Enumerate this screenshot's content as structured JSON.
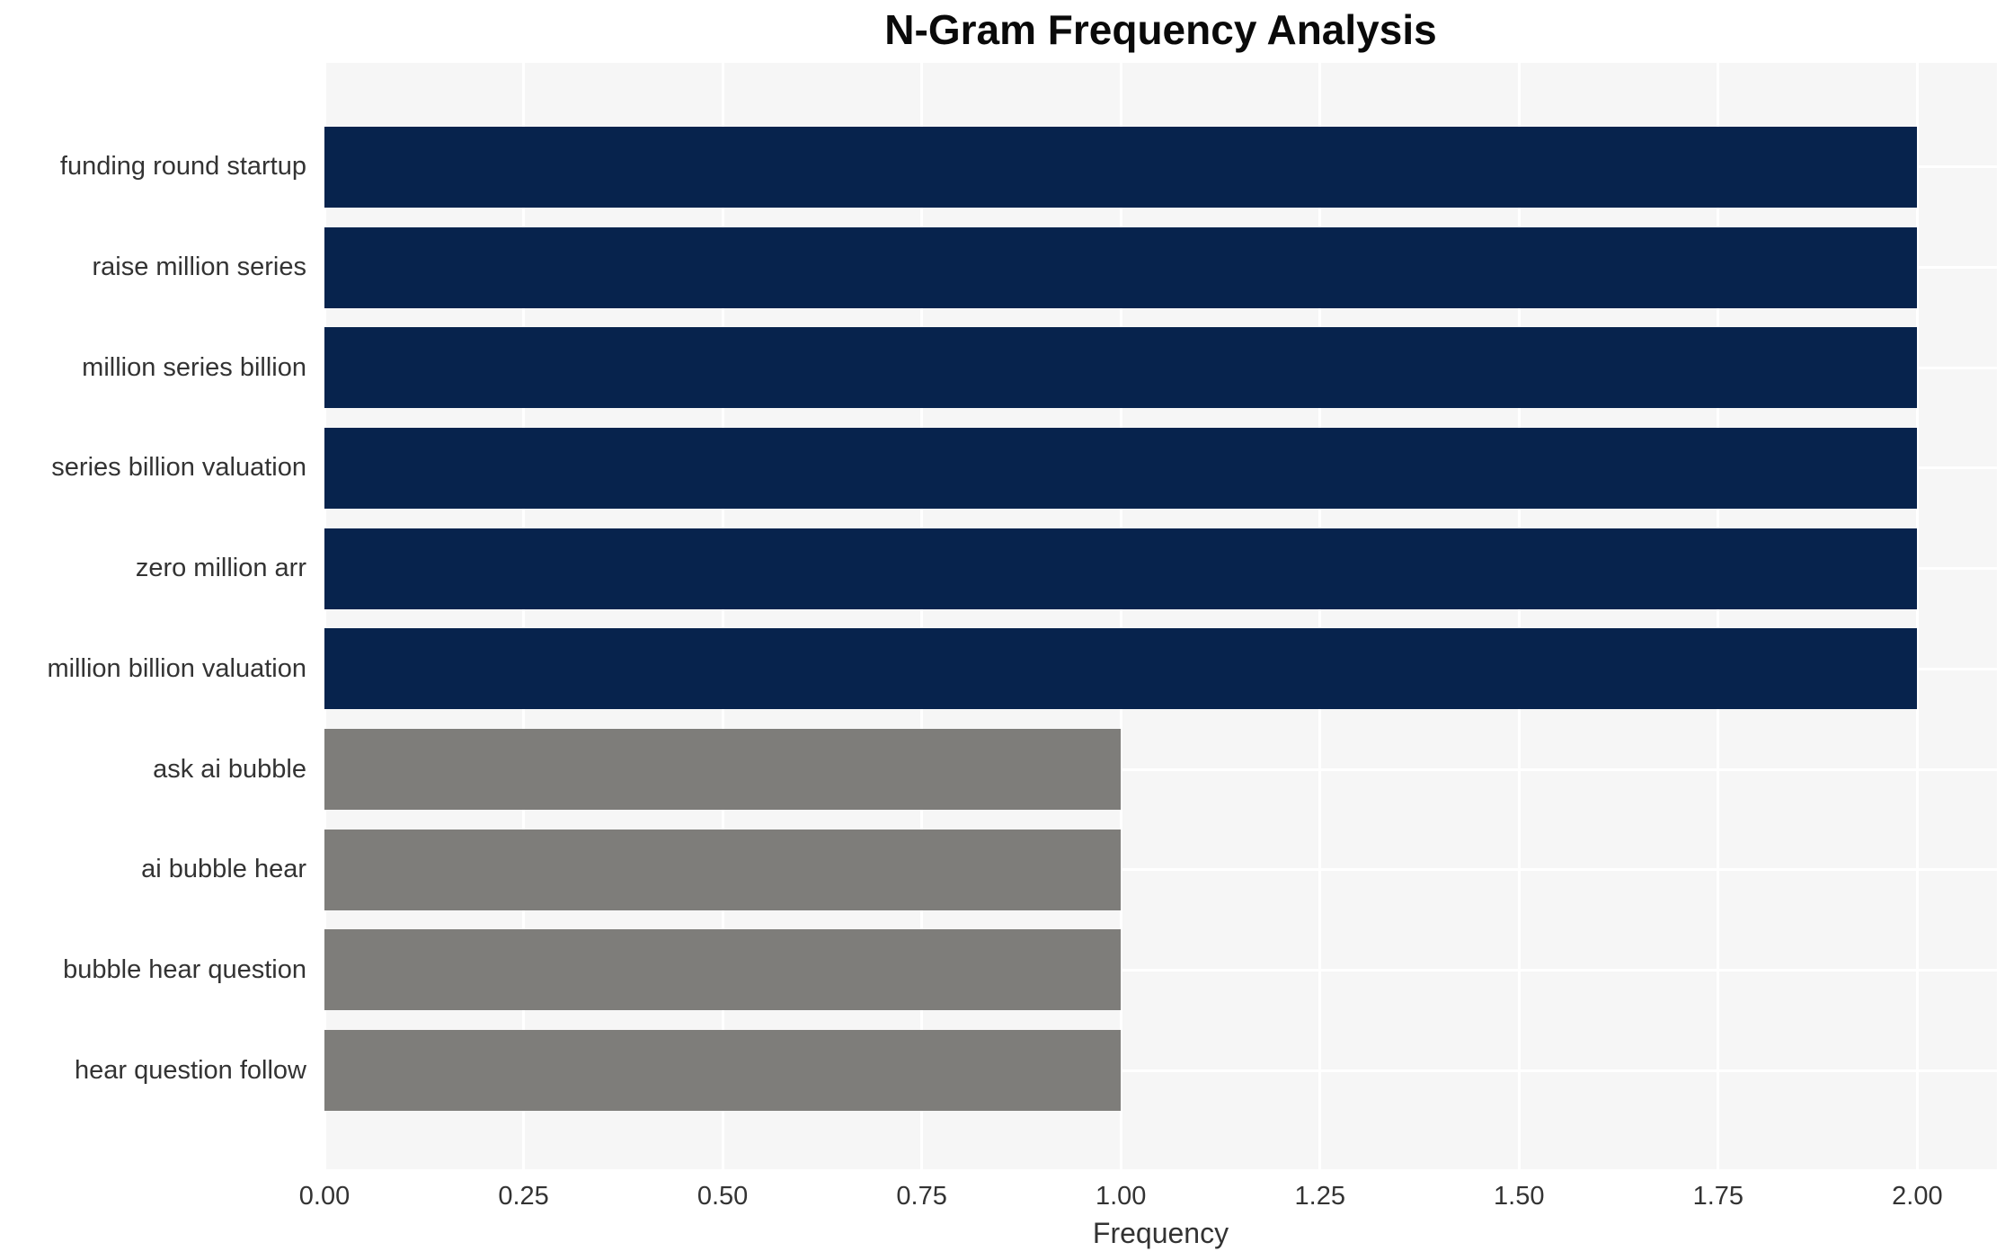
{
  "chart_data": {
    "type": "bar",
    "orientation": "horizontal",
    "title": "N-Gram Frequency Analysis",
    "xlabel": "Frequency",
    "ylabel": "",
    "categories": [
      "funding round startup",
      "raise million series",
      "million series billion",
      "series billion valuation",
      "zero million arr",
      "million billion valuation",
      "ask ai bubble",
      "ai bubble hear",
      "bubble hear question",
      "hear question follow"
    ],
    "values": [
      2,
      2,
      2,
      2,
      2,
      2,
      1,
      1,
      1,
      1
    ],
    "bar_colors": [
      "#07234d",
      "#07234d",
      "#07234d",
      "#07234d",
      "#07234d",
      "#07234d",
      "#7e7d7a",
      "#7e7d7a",
      "#7e7d7a",
      "#7e7d7a"
    ],
    "xlim": [
      0,
      2.1
    ],
    "xticks": [
      0,
      0.25,
      0.5,
      0.75,
      1,
      1.25,
      1.5,
      1.75,
      2
    ],
    "xtick_labels": [
      "0.00",
      "0.25",
      "0.50",
      "0.75",
      "1.00",
      "1.25",
      "1.50",
      "1.75",
      "2.00"
    ],
    "grid": true,
    "legend": false,
    "colors": {
      "high_frequency_bar": "#07234d",
      "low_frequency_bar": "#7e7d7a",
      "plot_background": "#f6f6f6",
      "gridline": "#ffffff",
      "text": "#333333",
      "title_text": "#0a0a0a"
    }
  }
}
